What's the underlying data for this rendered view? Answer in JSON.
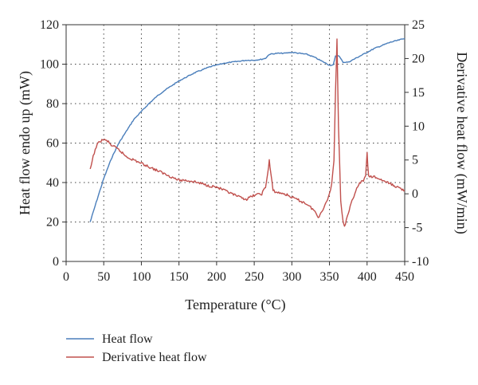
{
  "chart_data": {
    "type": "line",
    "title": "",
    "xlabel": "Temperature (°C)",
    "ylabel": "Heat flow endo up (mW)",
    "y2label": "Derivative heat flow (mW/min)",
    "xlim": [
      0,
      450
    ],
    "ylim": [
      0,
      120
    ],
    "y2lim": [
      -10,
      25
    ],
    "xticks": [
      0,
      50,
      100,
      150,
      200,
      250,
      300,
      350,
      400,
      450
    ],
    "yticks": [
      0,
      20,
      40,
      60,
      80,
      100,
      120
    ],
    "y2ticks": [
      -10,
      -5,
      0,
      5,
      10,
      15,
      20,
      25
    ],
    "grid": "dotted",
    "legend_position": "bottom-left",
    "series": [
      {
        "name": "Heat flow",
        "axis": "left",
        "color": "#4a7ebb",
        "x": [
          32,
          40,
          50,
          60,
          70,
          80,
          90,
          100,
          110,
          120,
          130,
          140,
          150,
          160,
          170,
          180,
          190,
          200,
          210,
          220,
          230,
          240,
          250,
          260,
          265,
          270,
          280,
          290,
          300,
          310,
          320,
          330,
          340,
          350,
          355,
          358,
          362,
          368,
          375,
          380,
          390,
          400,
          410,
          420,
          430,
          440,
          450
        ],
        "y": [
          20,
          30,
          42,
          52,
          60,
          66,
          72,
          76,
          80,
          83.5,
          86.5,
          89,
          91.5,
          93.5,
          95.5,
          97,
          98.5,
          99.5,
          100.5,
          101,
          101.5,
          102,
          102,
          102.5,
          103,
          105,
          105.5,
          105.5,
          106,
          105.5,
          105,
          103.5,
          101.5,
          99.5,
          99.5,
          104,
          104.5,
          101,
          101,
          102,
          104,
          106,
          108,
          109.5,
          111,
          112,
          113
        ]
      },
      {
        "name": "Derivative heat flow",
        "axis": "right",
        "color": "#c0504d",
        "x": [
          32,
          36,
          40,
          45,
          50,
          55,
          60,
          70,
          80,
          90,
          100,
          110,
          120,
          130,
          140,
          150,
          160,
          170,
          180,
          190,
          200,
          210,
          220,
          230,
          240,
          250,
          260,
          265,
          268,
          270,
          272,
          275,
          280,
          290,
          300,
          310,
          320,
          330,
          335,
          340,
          345,
          350,
          353,
          356,
          358,
          360,
          362,
          365,
          368,
          370,
          375,
          380,
          385,
          390,
          395,
          398,
          400,
          402,
          405,
          410,
          420,
          430,
          440,
          450
        ],
        "y": [
          3.5,
          5.5,
          7,
          7.8,
          8,
          7.8,
          7.2,
          6.5,
          5.5,
          5,
          4.5,
          4,
          3.5,
          3,
          2.5,
          2,
          2,
          1.8,
          1.5,
          1.2,
          1,
          0.5,
          0,
          -0.5,
          -0.8,
          -0.2,
          0,
          1,
          3,
          5,
          3,
          0.5,
          0.2,
          0,
          -0.5,
          -1,
          -1.5,
          -2.5,
          -3.5,
          -2.5,
          -1.5,
          0,
          1.5,
          5,
          15,
          23,
          10,
          -1,
          -4,
          -4.8,
          -3,
          -1,
          0.5,
          1.5,
          2,
          2.5,
          6,
          2.5,
          2.5,
          2.5,
          2,
          1.5,
          1,
          0.5
        ]
      }
    ]
  }
}
